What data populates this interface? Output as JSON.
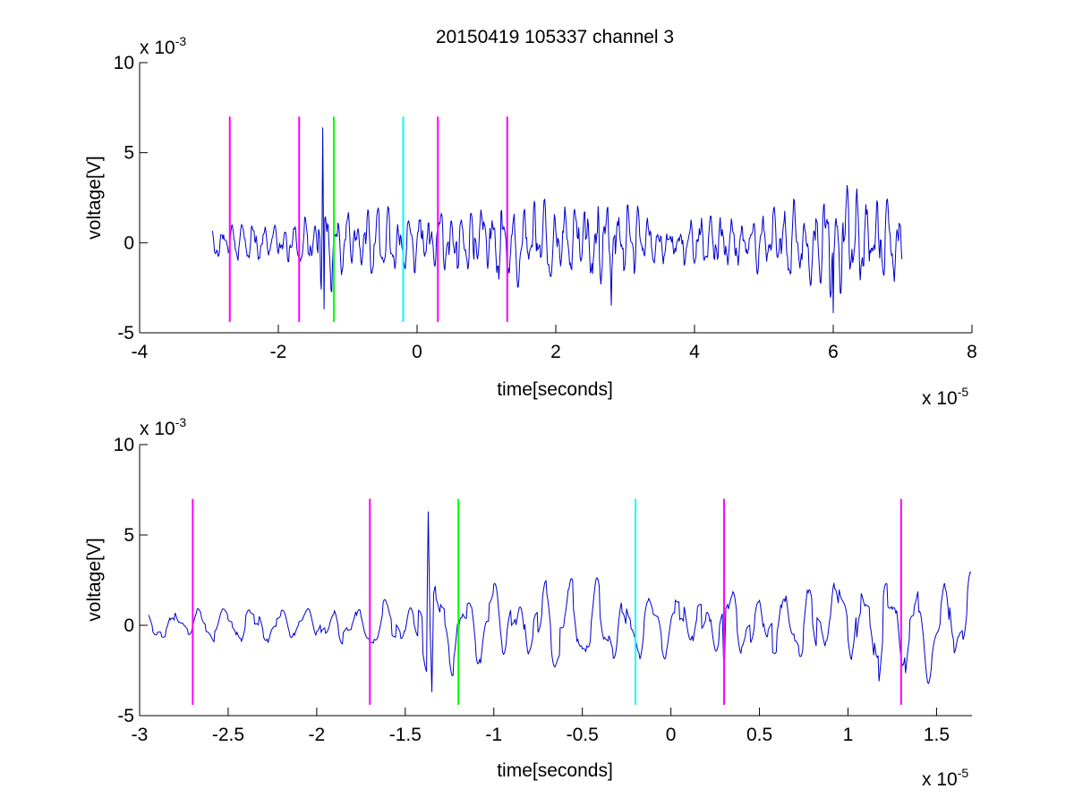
{
  "title": "20150419 105337 channel 3",
  "chart_data": [
    {
      "type": "line",
      "xlabel": "time[seconds]",
      "ylabel": "voltage[V]",
      "x_exponent_label": "x 10",
      "x_exponent": "-5",
      "y_exponent_label": "x 10",
      "y_exponent": "-3",
      "xlim": [
        -4e-05,
        8e-05
      ],
      "ylim": [
        -0.005,
        0.01
      ],
      "xticks": [
        -4e-05,
        -2e-05,
        0,
        2e-05,
        4e-05,
        6e-05,
        8e-05
      ],
      "xtick_labels": [
        "-4",
        "-2",
        "0",
        "2",
        "4",
        "6",
        "8"
      ],
      "yticks": [
        -0.005,
        0,
        0.005,
        0.01
      ],
      "ytick_labels": [
        "-5",
        "0",
        "5",
        "10"
      ],
      "signal": {
        "color": "#0000cc",
        "x_start": -2.95e-05,
        "x_end": 7e-05,
        "description": "noisy waveform, amplitude about ±3e-3 V",
        "amplitude_envelope": [
          [
            -2.95e-05,
            0.0008
          ],
          [
            -1.5e-05,
            0.0012
          ],
          [
            -1.35e-05,
            0.0025
          ],
          [
            -1e-05,
            0.0018
          ],
          [
            0.0,
            0.0015
          ],
          [
            1.5e-05,
            0.0022
          ],
          [
            2.8e-05,
            0.0022
          ],
          [
            3.5e-05,
            0.0012
          ],
          [
            5e-05,
            0.0014
          ],
          [
            6e-05,
            0.0028
          ],
          [
            7e-05,
            0.002
          ]
        ],
        "spikes": [
          {
            "x": -1.36e-05,
            "y": 0.0064
          },
          {
            "x": -1.34e-05,
            "y": -0.0037
          },
          {
            "x": 2.8e-05,
            "y": -0.0035
          },
          {
            "x": 6e-05,
            "y": -0.0039
          }
        ]
      },
      "markers": [
        {
          "x": -2.7e-05,
          "color": "#ff00ff"
        },
        {
          "x": -1.7e-05,
          "color": "#ff00ff"
        },
        {
          "x": -1.2e-05,
          "color": "#00ff00"
        },
        {
          "x": -2e-06,
          "color": "#00ffff"
        },
        {
          "x": 3e-06,
          "color": "#ff00ff"
        },
        {
          "x": 1.3e-05,
          "color": "#ff00ff"
        }
      ],
      "marker_range": [
        -0.0044,
        0.007
      ]
    },
    {
      "type": "line",
      "xlabel": "time[seconds]",
      "ylabel": "voltage[V]",
      "x_exponent_label": "x 10",
      "x_exponent": "-5",
      "y_exponent_label": "x 10",
      "y_exponent": "-3",
      "xlim": [
        -3e-05,
        1.7e-05
      ],
      "ylim": [
        -0.005,
        0.01
      ],
      "xticks": [
        -3e-05,
        -2.5e-05,
        -2e-05,
        -1.5e-05,
        -1e-05,
        -5e-06,
        0,
        5e-06,
        1e-05,
        1.5e-05
      ],
      "xtick_labels": [
        "-3",
        "-2.5",
        "-2",
        "-1.5",
        "-1",
        "-0.5",
        "0",
        "0.5",
        "1",
        "1.5"
      ],
      "yticks": [
        -0.005,
        0,
        0.005,
        0.01
      ],
      "ytick_labels": [
        "-5",
        "0",
        "5",
        "10"
      ],
      "signal": {
        "color": "#0000cc",
        "x_start": -2.95e-05,
        "x_end": 1.7e-05,
        "description": "zoomed view of the same waveform",
        "amplitude_envelope": [
          [
            -2.95e-05,
            0.0007
          ],
          [
            -2e-05,
            0.001
          ],
          [
            -1.5e-05,
            0.0012
          ],
          [
            -1.4e-05,
            0.0022
          ],
          [
            -1e-05,
            0.0024
          ],
          [
            -5e-06,
            0.0022
          ],
          [
            0.0,
            0.0016
          ],
          [
            5e-06,
            0.0018
          ],
          [
            1e-05,
            0.0026
          ],
          [
            1.7e-05,
            0.0028
          ]
        ],
        "spikes": [
          {
            "x": -1.37e-05,
            "y": 0.0063
          },
          {
            "x": -1.35e-05,
            "y": -0.0037
          },
          {
            "x": 3e-06,
            "y": -0.0029
          }
        ]
      },
      "markers": [
        {
          "x": -2.7e-05,
          "color": "#ff00ff"
        },
        {
          "x": -1.7e-05,
          "color": "#ff00ff"
        },
        {
          "x": -1.2e-05,
          "color": "#00ff00"
        },
        {
          "x": -2e-06,
          "color": "#00ffff"
        },
        {
          "x": 3e-06,
          "color": "#ff00ff"
        },
        {
          "x": 1.3e-05,
          "color": "#ff00ff"
        }
      ],
      "marker_range": [
        -0.0044,
        0.007
      ]
    }
  ]
}
